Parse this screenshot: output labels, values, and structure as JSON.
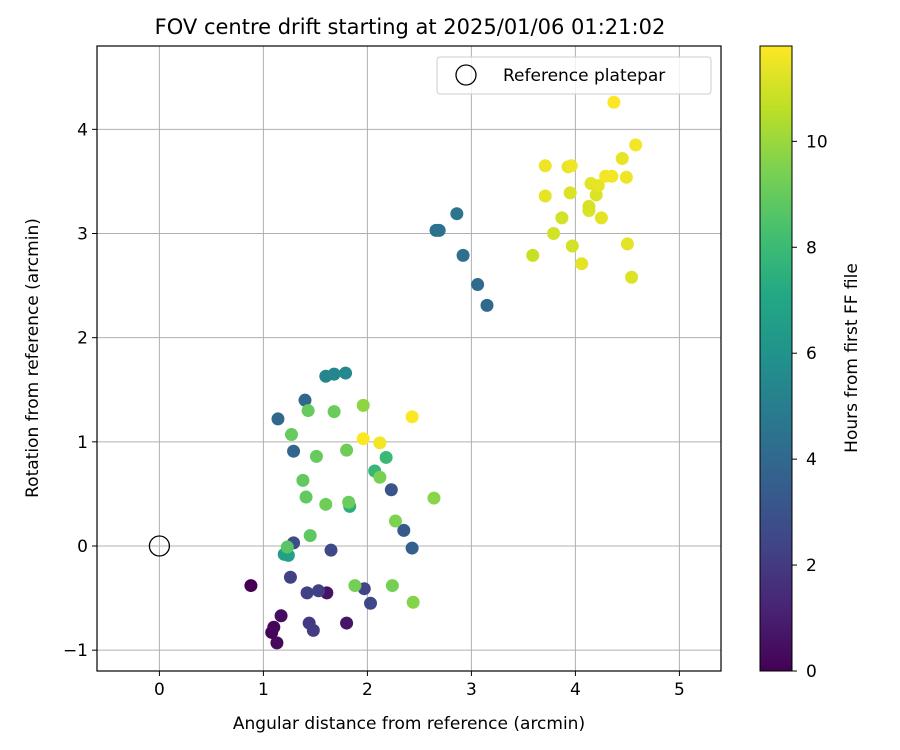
{
  "chart_data": {
    "type": "scatter",
    "title": "FOV centre drift starting at 2025/01/06 01:21:02",
    "xlabel": "Angular distance from reference (arcmin)",
    "ylabel": "Rotation from reference (arcmin)",
    "xlim": [
      -0.6,
      5.4
    ],
    "ylim": [
      -1.2,
      4.8
    ],
    "xticks": [
      0,
      1,
      2,
      3,
      4,
      5
    ],
    "yticks": [
      -1,
      0,
      1,
      2,
      3,
      4
    ],
    "grid": true,
    "legend": {
      "position": "top-right",
      "entries": [
        "Reference platepar"
      ]
    },
    "reference_point": {
      "x": 0,
      "y": 0,
      "marker": "open-circle"
    },
    "colorbar": {
      "label": "Hours from first FF file",
      "range": [
        0,
        11.8
      ],
      "ticks": [
        0,
        2,
        4,
        6,
        8,
        10
      ],
      "colormap": "viridis"
    },
    "series": [
      {
        "points": [
          {
            "x": 0.88,
            "y": -0.38,
            "c": 0.0
          },
          {
            "x": 1.08,
            "y": -0.83,
            "c": 0.1
          },
          {
            "x": 1.1,
            "y": -0.78,
            "c": 0.2
          },
          {
            "x": 1.13,
            "y": -0.93,
            "c": 0.3
          },
          {
            "x": 1.17,
            "y": -0.67,
            "c": 0.4
          },
          {
            "x": 1.61,
            "y": -0.45,
            "c": 0.6
          },
          {
            "x": 1.8,
            "y": -0.74,
            "c": 0.7
          },
          {
            "x": 1.44,
            "y": -0.74,
            "c": 2.0
          },
          {
            "x": 1.48,
            "y": -0.81,
            "c": 2.1
          },
          {
            "x": 1.53,
            "y": -0.43,
            "c": 2.2
          },
          {
            "x": 1.42,
            "y": -0.45,
            "c": 2.3
          },
          {
            "x": 1.26,
            "y": -0.3,
            "c": 2.3
          },
          {
            "x": 1.97,
            "y": -0.41,
            "c": 2.4
          },
          {
            "x": 2.03,
            "y": -0.55,
            "c": 2.5
          },
          {
            "x": 1.65,
            "y": -0.04,
            "c": 2.6
          },
          {
            "x": 1.29,
            "y": 0.03,
            "c": 2.7
          },
          {
            "x": 2.23,
            "y": 0.54,
            "c": 3.0
          },
          {
            "x": 2.35,
            "y": 0.15,
            "c": 3.3
          },
          {
            "x": 2.43,
            "y": -0.02,
            "c": 3.6
          },
          {
            "x": 1.29,
            "y": 0.91,
            "c": 3.8
          },
          {
            "x": 1.4,
            "y": 1.4,
            "c": 3.9
          },
          {
            "x": 1.14,
            "y": 1.22,
            "c": 4.0
          },
          {
            "x": 3.15,
            "y": 2.31,
            "c": 4.0
          },
          {
            "x": 3.06,
            "y": 2.51,
            "c": 4.1
          },
          {
            "x": 2.92,
            "y": 2.79,
            "c": 4.3
          },
          {
            "x": 2.66,
            "y": 3.03,
            "c": 4.4
          },
          {
            "x": 2.69,
            "y": 3.03,
            "c": 4.5
          },
          {
            "x": 2.86,
            "y": 3.19,
            "c": 4.6
          },
          {
            "x": 1.6,
            "y": 1.63,
            "c": 5.3
          },
          {
            "x": 1.68,
            "y": 1.65,
            "c": 5.4
          },
          {
            "x": 1.79,
            "y": 1.66,
            "c": 5.5
          },
          {
            "x": 1.2,
            "y": -0.08,
            "c": 6.6
          },
          {
            "x": 1.24,
            "y": -0.09,
            "c": 6.7
          },
          {
            "x": 1.83,
            "y": 0.38,
            "c": 7.4
          },
          {
            "x": 2.07,
            "y": 0.72,
            "c": 7.8
          },
          {
            "x": 2.18,
            "y": 0.85,
            "c": 7.9
          },
          {
            "x": 1.23,
            "y": -0.01,
            "c": 8.7
          },
          {
            "x": 1.45,
            "y": 0.1,
            "c": 8.8
          },
          {
            "x": 1.41,
            "y": 0.47,
            "c": 8.9
          },
          {
            "x": 1.38,
            "y": 0.63,
            "c": 8.9
          },
          {
            "x": 1.51,
            "y": 0.86,
            "c": 9.0
          },
          {
            "x": 1.27,
            "y": 1.07,
            "c": 9.0
          },
          {
            "x": 1.43,
            "y": 1.3,
            "c": 9.0
          },
          {
            "x": 1.68,
            "y": 1.29,
            "c": 9.1
          },
          {
            "x": 1.82,
            "y": 0.42,
            "c": 9.1
          },
          {
            "x": 1.6,
            "y": 0.4,
            "c": 9.2
          },
          {
            "x": 1.8,
            "y": 0.92,
            "c": 9.2
          },
          {
            "x": 1.88,
            "y": -0.38,
            "c": 9.3
          },
          {
            "x": 2.24,
            "y": -0.38,
            "c": 9.3
          },
          {
            "x": 2.12,
            "y": 0.66,
            "c": 9.4
          },
          {
            "x": 2.27,
            "y": 0.24,
            "c": 9.5
          },
          {
            "x": 2.44,
            "y": -0.54,
            "c": 9.6
          },
          {
            "x": 2.64,
            "y": 0.46,
            "c": 9.7
          },
          {
            "x": 1.96,
            "y": 1.35,
            "c": 9.8
          },
          {
            "x": 3.59,
            "y": 2.79,
            "c": 10.8
          },
          {
            "x": 3.79,
            "y": 3.0,
            "c": 11.0
          },
          {
            "x": 3.97,
            "y": 2.88,
            "c": 11.0
          },
          {
            "x": 4.06,
            "y": 2.71,
            "c": 11.3
          },
          {
            "x": 4.5,
            "y": 2.9,
            "c": 11.3
          },
          {
            "x": 4.54,
            "y": 2.58,
            "c": 11.2
          },
          {
            "x": 3.87,
            "y": 3.15,
            "c": 11.0
          },
          {
            "x": 3.71,
            "y": 3.36,
            "c": 11.4
          },
          {
            "x": 3.71,
            "y": 3.65,
            "c": 11.5
          },
          {
            "x": 3.93,
            "y": 3.64,
            "c": 11.4
          },
          {
            "x": 3.96,
            "y": 3.65,
            "c": 11.5
          },
          {
            "x": 3.95,
            "y": 3.39,
            "c": 11.2
          },
          {
            "x": 4.13,
            "y": 3.22,
            "c": 11.2
          },
          {
            "x": 4.13,
            "y": 3.26,
            "c": 11.1
          },
          {
            "x": 4.15,
            "y": 3.48,
            "c": 11.3
          },
          {
            "x": 4.2,
            "y": 3.37,
            "c": 11.2
          },
          {
            "x": 4.22,
            "y": 3.46,
            "c": 11.4
          },
          {
            "x": 4.25,
            "y": 3.15,
            "c": 11.3
          },
          {
            "x": 4.29,
            "y": 3.55,
            "c": 11.6
          },
          {
            "x": 4.35,
            "y": 3.55,
            "c": 11.6
          },
          {
            "x": 4.45,
            "y": 3.72,
            "c": 11.4
          },
          {
            "x": 4.49,
            "y": 3.54,
            "c": 11.5
          },
          {
            "x": 4.58,
            "y": 3.85,
            "c": 11.6
          },
          {
            "x": 4.37,
            "y": 4.26,
            "c": 11.8
          },
          {
            "x": 2.12,
            "y": 0.99,
            "c": 11.6
          },
          {
            "x": 1.96,
            "y": 1.03,
            "c": 11.8
          },
          {
            "x": 2.43,
            "y": 1.24,
            "c": 11.8
          }
        ]
      }
    ]
  }
}
